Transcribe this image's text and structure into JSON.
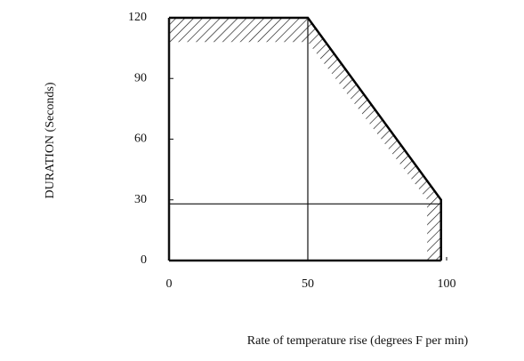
{
  "chart_data": {
    "type": "area",
    "y_label": "DURATION (Seconds)",
    "x_label": "Rate of temperature rise (degrees F per min)",
    "xlim": [
      0,
      100
    ],
    "xticks": [
      0,
      50,
      100
    ],
    "ylim": [
      0,
      120
    ],
    "yticks": [
      0,
      30,
      60,
      90,
      120
    ],
    "series": [
      {
        "x": [
          0,
          50,
          98,
          98
        ],
        "values": [
          120,
          120,
          30,
          0
        ],
        "color": "#000000"
      },
      {
        "x": [
          0,
          50,
          93,
          93
        ],
        "values": [
          108,
          108,
          30,
          0
        ],
        "color": "#000000"
      }
    ],
    "reference_lines": {
      "x": 50,
      "y": 28
    }
  }
}
